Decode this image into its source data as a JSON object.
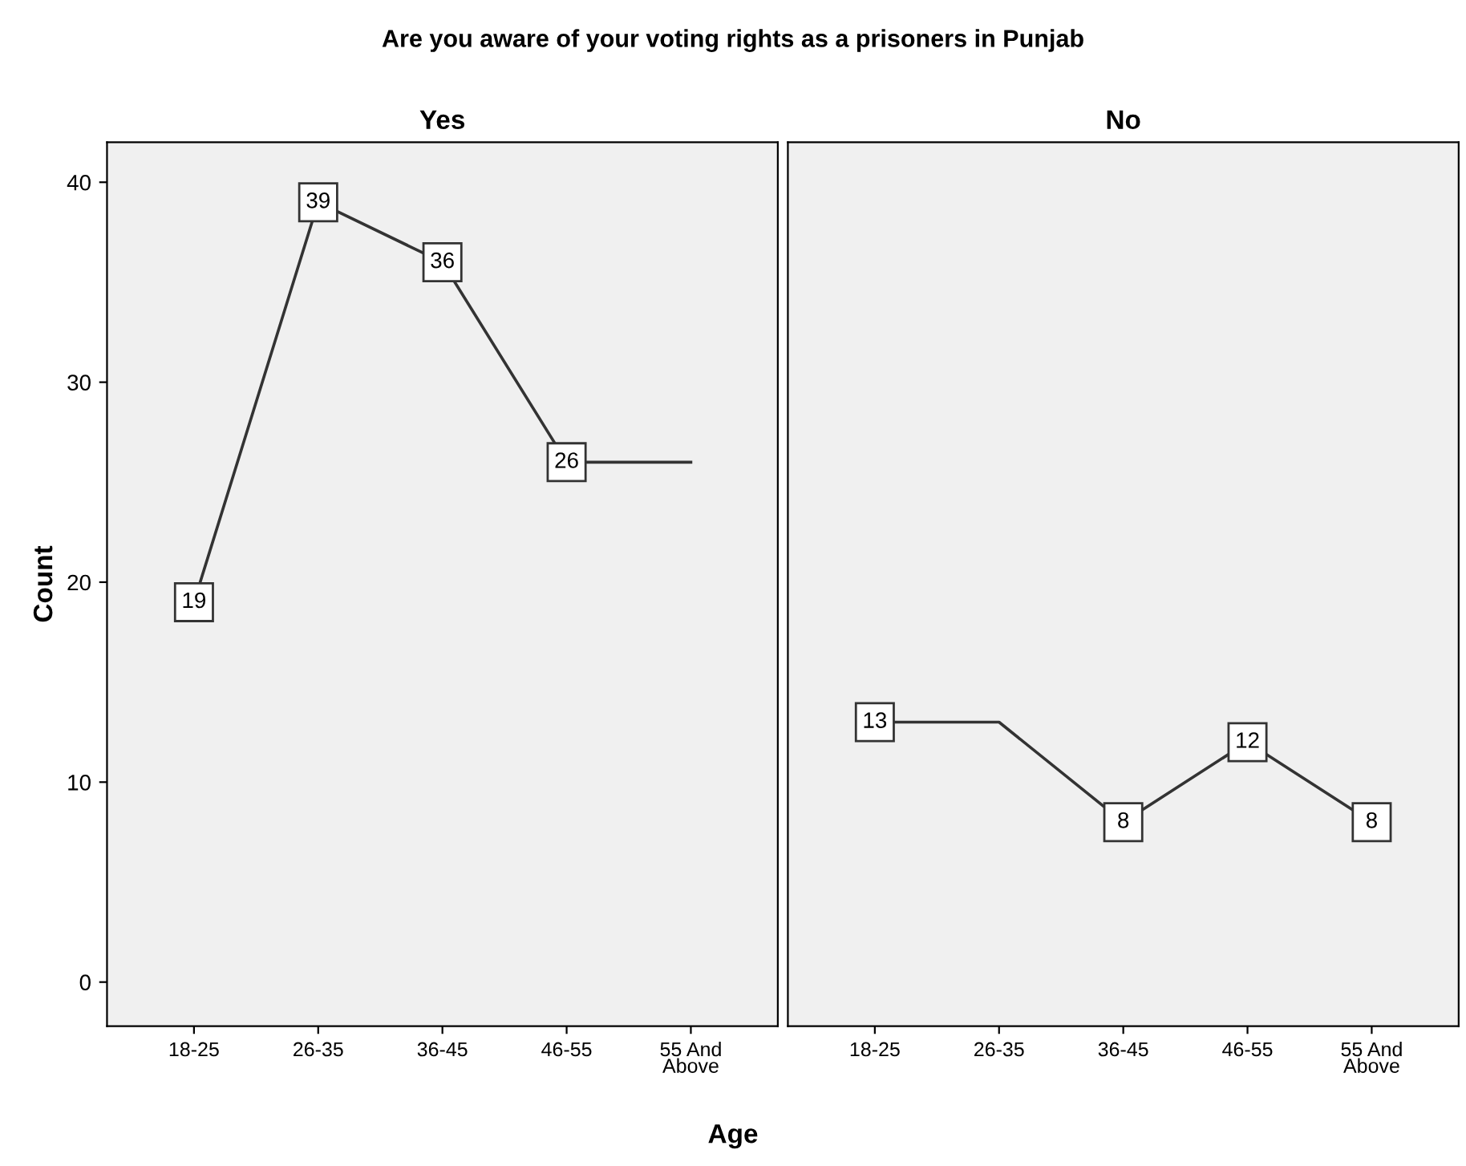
{
  "chart_data": [
    {
      "type": "line",
      "title": "Are you aware of your voting rights as a prisoners in Punjab",
      "subtitle": "Yes",
      "xlabel": "Age",
      "ylabel": "Count",
      "categories": [
        "18-25",
        "26-35",
        "36-45",
        "46-55",
        "55 And\nAbove"
      ],
      "values": [
        19,
        39,
        36,
        26,
        26
      ],
      "value_labels": [
        "19",
        "39",
        "36",
        "26",
        null
      ],
      "color": "#333333",
      "ylim": [
        -2.2,
        42
      ],
      "yticks": [
        0,
        10,
        20,
        30,
        40
      ],
      "grid": false,
      "marker": "square",
      "line_style": "solid"
    },
    {
      "type": "line",
      "subtitle": "No",
      "categories": [
        "18-25",
        "26-35",
        "36-45",
        "46-55",
        "55 And\nAbove"
      ],
      "values": [
        13,
        13,
        8,
        12,
        8
      ],
      "value_labels": [
        "13",
        null,
        "8",
        "12",
        "8"
      ],
      "color": "#333333",
      "ylim": [
        -2.2,
        42
      ],
      "yticks": [
        0,
        10,
        20,
        30,
        40
      ],
      "grid": false,
      "marker": "square",
      "line_style": "solid",
      "tick_labels": "x"
    }
  ]
}
